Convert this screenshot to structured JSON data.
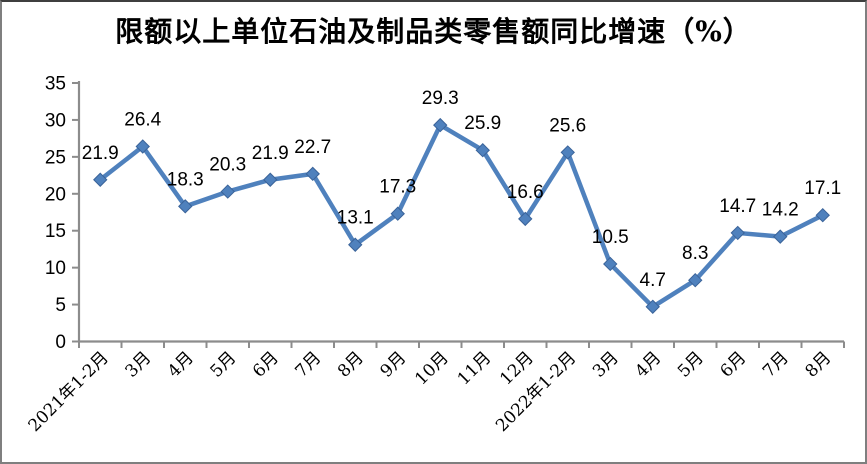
{
  "chart_data": {
    "type": "line",
    "title": "限额以上单位石油及制品类零售额同比增速（%）",
    "categories": [
      "2021年1-2月",
      "3月",
      "4月",
      "5月",
      "6月",
      "7月",
      "8月",
      "9月",
      "10月",
      "11月",
      "12月",
      "2022年1-2月",
      "3月",
      "4月",
      "5月",
      "6月",
      "7月",
      "8月"
    ],
    "values": [
      21.9,
      26.4,
      18.3,
      20.3,
      21.9,
      22.7,
      13.1,
      17.3,
      29.3,
      25.9,
      16.6,
      25.6,
      10.5,
      4.7,
      8.3,
      14.7,
      14.2,
      17.1
    ],
    "data_labels": [
      "21.9",
      "26.4",
      "18.3",
      "20.3",
      "21.9",
      "22.7",
      "13.1",
      "17.3",
      "29.3",
      "25.9",
      "16.6",
      "25.6",
      "10.5",
      "4.7",
      "8.3",
      "14.7",
      "14.2",
      "17.1"
    ],
    "xlabel": "",
    "ylabel": "",
    "ylim": [
      0,
      35
    ],
    "yticks": [
      0,
      5,
      10,
      15,
      20,
      25,
      30,
      35
    ],
    "grid": false,
    "legend": "none",
    "marker": "diamond",
    "colors": {
      "line": "#4F81BD",
      "marker_border": "#3A6399",
      "axis": "#8C8C8C",
      "text": "#000000",
      "background": "#FFFFFF",
      "frame_border": "#7F7F7F"
    }
  }
}
